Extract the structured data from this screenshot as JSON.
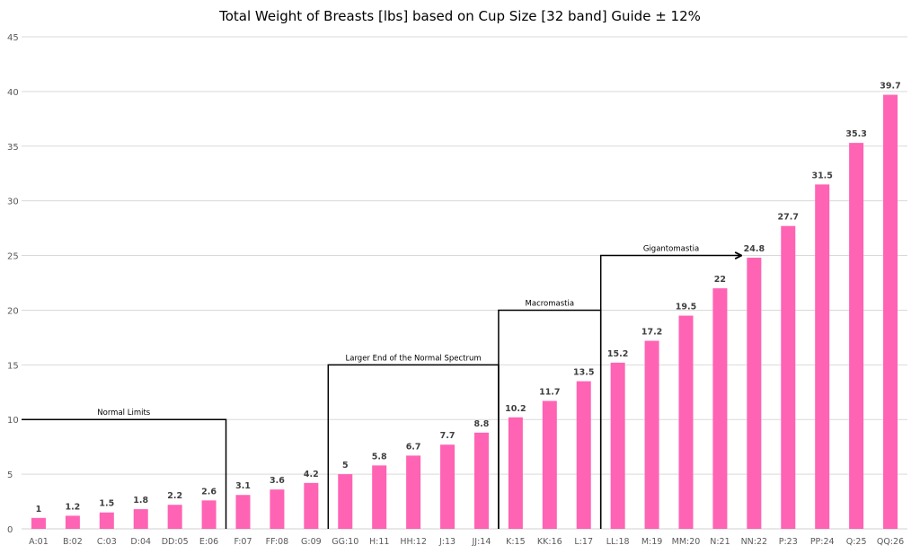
{
  "chart_data": {
    "type": "bar",
    "title": "Total Weight of Breasts [lbs] based on Cup Size [32 band] Guide ± 12%",
    "xlabel": "",
    "ylabel": "",
    "ylim": [
      0,
      45
    ],
    "yticks": [
      0,
      5,
      10,
      15,
      20,
      25,
      30,
      35,
      40,
      45
    ],
    "grid": true,
    "bar_color": "#FF63B4",
    "categories": [
      "A:01",
      "B:02",
      "C:03",
      "D:04",
      "DD:05",
      "E:06",
      "F:07",
      "FF:08",
      "G:09",
      "GG:10",
      "H:11",
      "HH:12",
      "J:13",
      "JJ:14",
      "K:15",
      "KK:16",
      "L:17",
      "LL:18",
      "M:19",
      "MM:20",
      "N:21",
      "NN:22",
      "P:23",
      "PP:24",
      "Q:25",
      "QQ:26"
    ],
    "values": [
      1,
      1.2,
      1.5,
      1.8,
      2.2,
      2.6,
      3.1,
      3.6,
      4.2,
      5,
      5.8,
      6.7,
      7.7,
      8.8,
      10.2,
      11.7,
      13.5,
      15.2,
      17.2,
      19.5,
      22,
      24.8,
      27.7,
      31.5,
      35.3,
      39.7
    ],
    "annotations": [
      {
        "label": "Normal Limits",
        "level": 10,
        "from": "A:01",
        "to": "E:06",
        "arrow": false
      },
      {
        "label": "Larger End of the Normal Spectrum",
        "level": 15,
        "from": "GG:10",
        "to": "JJ:14",
        "arrow": false
      },
      {
        "label": "Macromastia",
        "level": 20,
        "from": "K:15",
        "to": "L:17",
        "arrow": false
      },
      {
        "label": "Gigantomastia",
        "level": 25,
        "from": "LL:18",
        "to": "NN:22",
        "arrow": true
      }
    ]
  }
}
